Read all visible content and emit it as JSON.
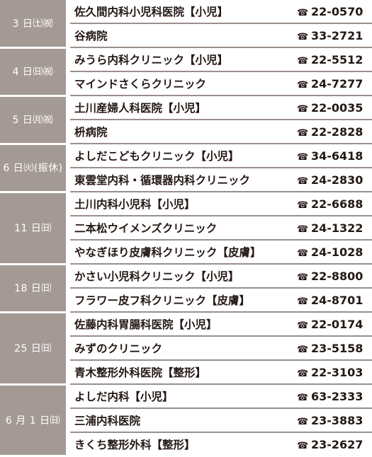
{
  "schedule": [
    {
      "date": "3 日㈯㈷",
      "clinics": [
        {
          "name": "佐久間内科小児科医院【小児】",
          "phone": "22-0570"
        },
        {
          "name": "谷病院",
          "phone": "33-2721"
        }
      ]
    },
    {
      "date": "4 日㈰㈷",
      "clinics": [
        {
          "name": "みうら内科クリニック【小児】",
          "phone": "22-5512"
        },
        {
          "name": "マインドさくらクリニック",
          "phone": "24-7277"
        }
      ]
    },
    {
      "date": "5 日㈪㈷",
      "clinics": [
        {
          "name": "土川産婦人科医院【小児】",
          "phone": "22-0035"
        },
        {
          "name": "枡病院",
          "phone": "22-2828"
        }
      ]
    },
    {
      "date": "6 日㈫(振休)",
      "clinics": [
        {
          "name": "よしだこどもクリニック【小児】",
          "phone": "34-6418"
        },
        {
          "name": "東雲堂内科・循環器内科クリニック",
          "phone": "24-2830"
        }
      ]
    },
    {
      "date": "11 日㈰",
      "clinics": [
        {
          "name": "土川内科小児科【小児】",
          "phone": "22-6688"
        },
        {
          "name": "二本松ウイメンズクリニック",
          "phone": "24-1322"
        },
        {
          "name": "やなぎほり皮膚科クリニック【皮膚】",
          "phone": "24-1028"
        }
      ]
    },
    {
      "date": "18 日㈰",
      "clinics": [
        {
          "name": "かさい小児科クリニック【小児】",
          "phone": "22-8800"
        },
        {
          "name": "フラワー皮フ科クリニック【皮膚】",
          "phone": "24-8701"
        }
      ]
    },
    {
      "date": "25 日㈰",
      "clinics": [
        {
          "name": "佐藤内科胃腸科医院【小児】",
          "phone": "22-0174"
        },
        {
          "name": "みずのクリニック",
          "phone": "23-5158"
        },
        {
          "name": "青木整形外科医院【整形】",
          "phone": "22-3103"
        }
      ]
    },
    {
      "date": "6 月 1 日㈰",
      "clinics": [
        {
          "name": "よしだ内科【小児】",
          "phone": "63-2333"
        },
        {
          "name": "三浦内科医院",
          "phone": "23-3883"
        },
        {
          "name": "きくち整形外科【整形】",
          "phone": "23-2627"
        }
      ]
    }
  ]
}
